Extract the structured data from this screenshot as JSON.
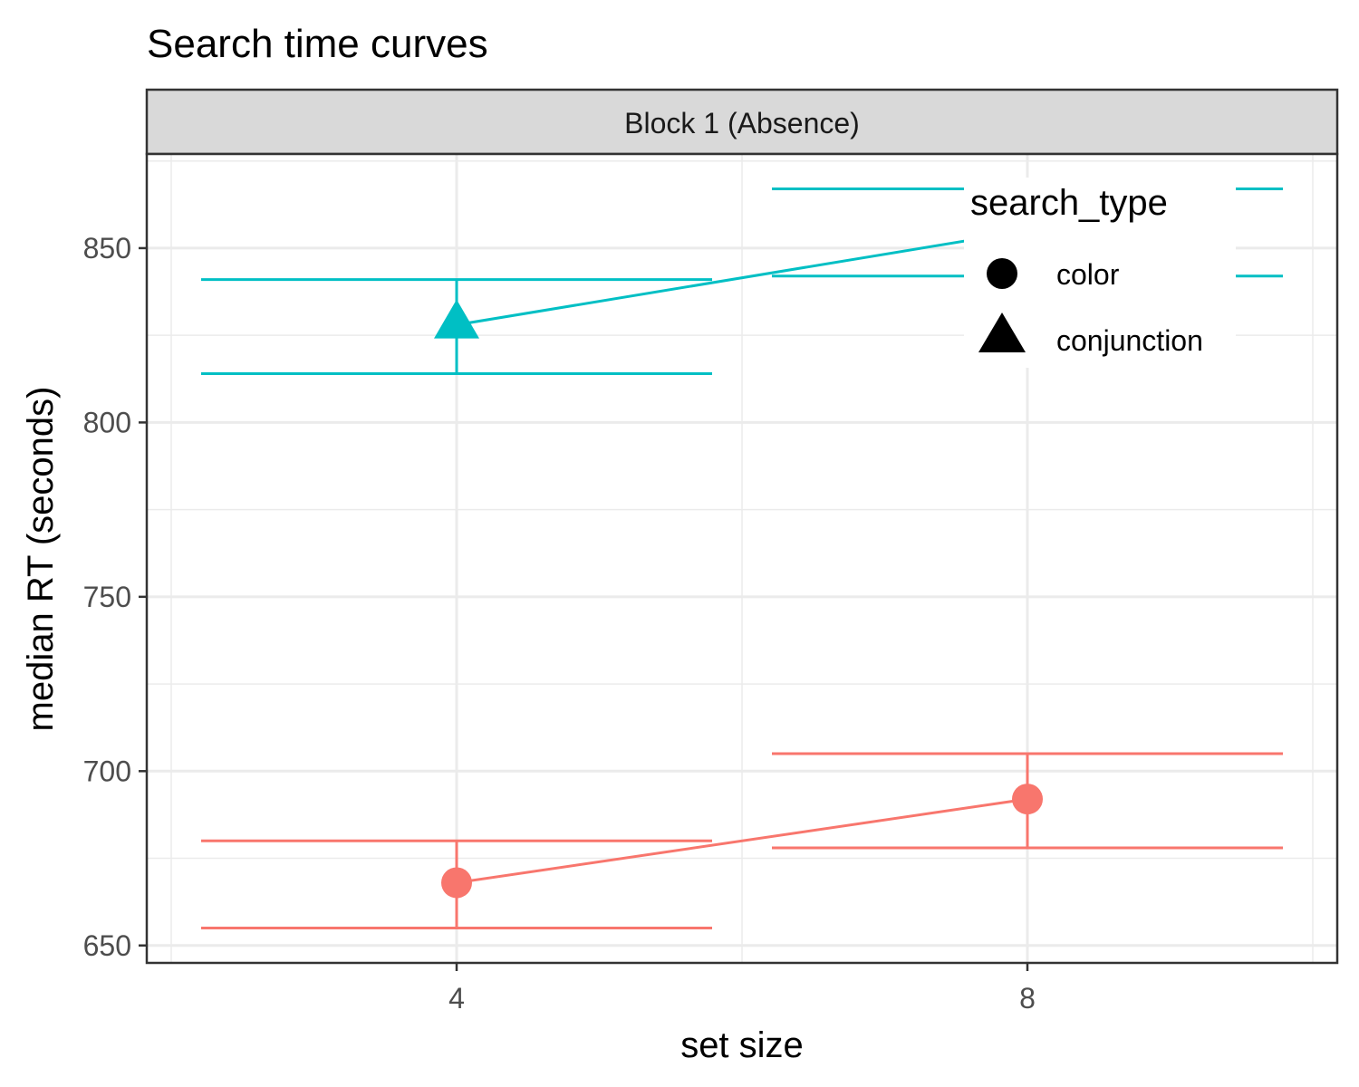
{
  "chart_data": {
    "type": "line",
    "title": "Search time curves",
    "facet_label": "Block 1 (Absence)",
    "xlabel": "set size",
    "ylabel": "median RT (seconds)",
    "x": [
      4,
      8
    ],
    "x_ticks": [
      "4",
      "8"
    ],
    "y_ticks": [
      650,
      700,
      750,
      800,
      850
    ],
    "ylim": [
      645,
      877
    ],
    "grid": true,
    "legend": {
      "title": "search_type",
      "position": "top-right",
      "entries": [
        {
          "label": "color",
          "shape": "circle"
        },
        {
          "label": "conjunction",
          "shape": "triangle"
        }
      ]
    },
    "series": [
      {
        "name": "color",
        "color": "#F8766D",
        "shape": "circle",
        "values": [
          668,
          692
        ],
        "error_low": [
          655,
          678
        ],
        "error_high": [
          680,
          705
        ]
      },
      {
        "name": "conjunction",
        "color": "#00BFC4",
        "shape": "triangle",
        "values": [
          828,
          855
        ],
        "error_low": [
          814,
          842
        ],
        "error_high": [
          841,
          867
        ]
      }
    ]
  }
}
